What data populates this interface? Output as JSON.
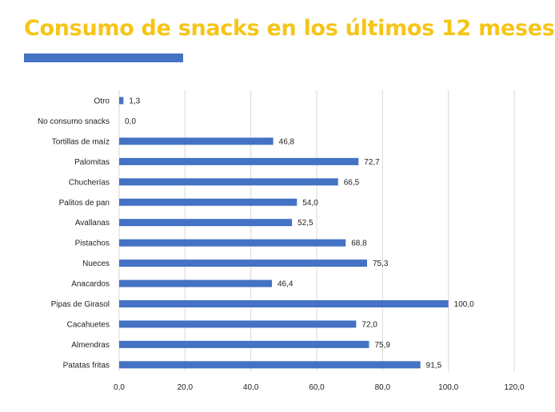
{
  "title": "Consumo de snacks en los últimos 12 meses",
  "colors": {
    "title": "#f5c518",
    "accent_bar": "#4472c4",
    "bars": "#4472c4",
    "grid": "#d9d9d9"
  },
  "chart_data": {
    "type": "bar",
    "orientation": "horizontal",
    "categories": [
      "Otro",
      "No consumo snacks",
      "Tortillas de maíz",
      "Palomitas",
      "Chucherías",
      "Palitos de pan",
      "Avallanas",
      "Pistachos",
      "Nueces",
      "Anacardos",
      "Pipas de Girasol",
      "Cacahuetes",
      "Almendras",
      "Patatas fritas"
    ],
    "values": [
      1.3,
      0.0,
      46.8,
      72.7,
      66.5,
      54.0,
      52.5,
      68.8,
      75.3,
      46.4,
      100.0,
      72.0,
      75.9,
      91.5
    ],
    "value_labels": [
      "1,3",
      "0,0",
      "46,8",
      "72,7",
      "66,5",
      "54,0",
      "52,5",
      "68,8",
      "75,3",
      "46,4",
      "100,0",
      "72,0",
      "75,9",
      "91,5"
    ],
    "xlim": [
      0,
      120
    ],
    "xticks": [
      0,
      20,
      40,
      60,
      80,
      100,
      120
    ],
    "xtick_labels": [
      "0,0",
      "20,0",
      "40,0",
      "60,0",
      "80,0",
      "100,0",
      "120,0"
    ],
    "grid": true,
    "legend": false,
    "xlabel": "",
    "ylabel": ""
  }
}
